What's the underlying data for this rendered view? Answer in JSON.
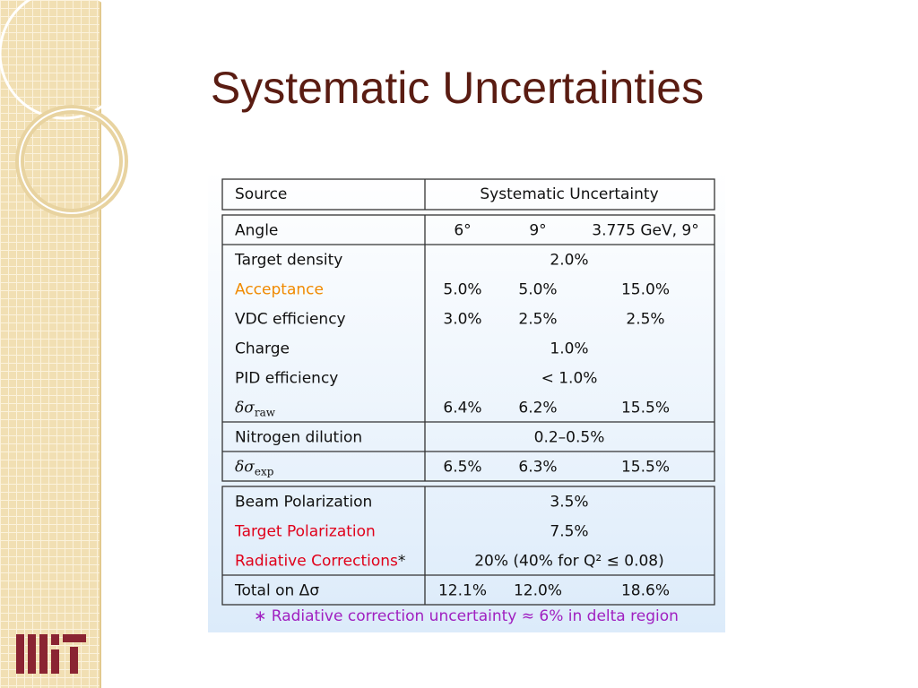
{
  "title": "Systematic Uncertainties",
  "table": {
    "header": {
      "source": "Source",
      "uncertainty": "Systematic Uncertainty"
    },
    "sections": [
      [
        [
          {
            "label": "Angle",
            "values": [
              "6°",
              "9°",
              "3.775 GeV, 9°"
            ]
          }
        ],
        [
          {
            "label": "Target density",
            "values": [
              "2.0%"
            ]
          },
          {
            "label": "Acceptance",
            "color": "#f08a00",
            "values": [
              "5.0%",
              "5.0%",
              "15.0%"
            ]
          },
          {
            "label": "VDC efficiency",
            "values": [
              "3.0%",
              "2.5%",
              "2.5%"
            ]
          },
          {
            "label": "Charge",
            "values": [
              "1.0%"
            ]
          },
          {
            "label": "PID efficiency",
            "values": [
              "< 1.0%"
            ]
          },
          {
            "label": "δσ",
            "label_sub": "raw",
            "values": [
              "6.4%",
              "6.2%",
              "15.5%"
            ]
          }
        ],
        [
          {
            "label": "Nitrogen dilution",
            "values": [
              "0.2–0.5%"
            ]
          }
        ],
        [
          {
            "label": "δσ",
            "label_sub": "exp",
            "values": [
              "6.5%",
              "6.3%",
              "15.5%"
            ]
          }
        ]
      ],
      [
        [
          {
            "label": "Beam Polarization",
            "values": [
              "3.5%"
            ]
          },
          {
            "label": "Target Polarization",
            "color": "#e0001a",
            "values": [
              "7.5%"
            ]
          },
          {
            "label": "Radiative Corrections",
            "label_mark": "*",
            "color": "#e0001a",
            "values": [
              "20% (40% for Q² ≤ 0.08)"
            ]
          }
        ],
        [
          {
            "label": "Total on Δσ",
            "values": [
              "12.1%",
              "12.0%",
              "18.6%"
            ]
          }
        ]
      ]
    ]
  },
  "footnote": "∗ Radiative correction uncertainty ≈ 6% in delta region"
}
